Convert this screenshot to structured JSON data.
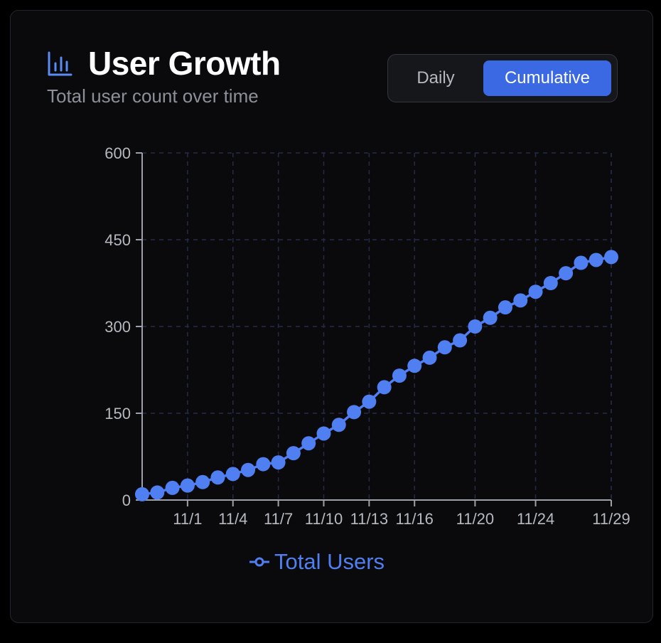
{
  "header": {
    "title": "User Growth",
    "subtitle": "Total user count over time",
    "icon": "bar-chart-icon"
  },
  "toggle": {
    "options": [
      "Daily",
      "Cumulative"
    ],
    "selected": "Cumulative"
  },
  "colors": {
    "accent": "#3b68e3",
    "series": "#4f7ff0",
    "background": "#0a0a0c"
  },
  "chart_data": {
    "type": "line",
    "title": "",
    "xlabel": "",
    "ylabel": "",
    "ylim": [
      0,
      600
    ],
    "yticks": [
      0,
      150,
      300,
      450,
      600
    ],
    "xlim": [
      "10/29",
      "11/29"
    ],
    "xticks": [
      "11/1",
      "11/4",
      "11/7",
      "11/10",
      "11/13",
      "11/16",
      "11/20",
      "11/24",
      "11/29"
    ],
    "grid": true,
    "legend": "bottom",
    "series": [
      {
        "name": "Total Users",
        "x": [
          "10/29",
          "10/30",
          "10/31",
          "11/1",
          "11/2",
          "11/3",
          "11/4",
          "11/5",
          "11/6",
          "11/7",
          "11/8",
          "11/9",
          "11/10",
          "11/11",
          "11/12",
          "11/13",
          "11/14",
          "11/15",
          "11/16",
          "11/17",
          "11/18",
          "11/19",
          "11/20",
          "11/21",
          "11/22",
          "11/23",
          "11/24",
          "11/25",
          "11/26",
          "11/27",
          "11/28",
          "11/29"
        ],
        "values": [
          10,
          13,
          21,
          25,
          31,
          39,
          45,
          52,
          62,
          65,
          81,
          98,
          115,
          130,
          152,
          170,
          195,
          215,
          232,
          246,
          264,
          276,
          300,
          315,
          333,
          345,
          360,
          375,
          392,
          410,
          415,
          420
        ]
      }
    ]
  }
}
